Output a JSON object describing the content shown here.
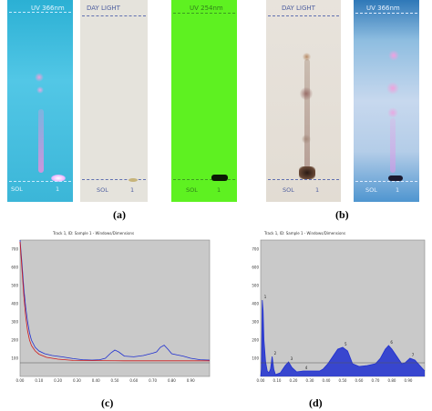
{
  "panel_a": {
    "plates": [
      {
        "top_label": "UV 366nm",
        "sol_label": "SOL",
        "lane_label": "1"
      },
      {
        "top_label": "DAY LIGHT",
        "sol_label": "SOL",
        "lane_label": "1"
      },
      {
        "top_label": "UV 254nm",
        "sol_label": "SOL",
        "lane_label": "1"
      }
    ],
    "caption": "(a)"
  },
  "panel_b": {
    "plates": [
      {
        "top_label": "DAY LIGHT",
        "sol_label": "SOL",
        "lane_label": "1"
      },
      {
        "top_label": "UV 366nm",
        "sol_label": "SOL",
        "lane_label": "1"
      }
    ],
    "caption": "(b)"
  },
  "colors": {
    "uv366": "#3fb8d8",
    "daylight": "#e6e4de",
    "uv254": "#5cf221",
    "chart_bg": "#c9c9c9",
    "blue_trace": "#1f2fd0",
    "red_trace": "#d01a1a"
  },
  "chart_data": [
    {
      "type": "line",
      "header": "Track 1, ID: Sample 1 - Windows/Dimensions",
      "caption": "(c)",
      "xlim": [
        0.0,
        1.0
      ],
      "ylim": [
        0,
        750
      ],
      "x_ticks": [
        "0.00",
        "0.10",
        "0.20",
        "0.30",
        "0.40",
        "0.50",
        "0.60",
        "0.70",
        "0.80",
        "0.90"
      ],
      "y_ticks": [
        "700",
        "600",
        "500",
        "400",
        "300",
        "200",
        "100"
      ],
      "series": [
        {
          "color": "blue",
          "points": [
            [
              0.0,
              750
            ],
            [
              0.01,
              620
            ],
            [
              0.02,
              480
            ],
            [
              0.03,
              380
            ],
            [
              0.04,
              300
            ],
            [
              0.05,
              240
            ],
            [
              0.06,
              200
            ],
            [
              0.08,
              160
            ],
            [
              0.1,
              140
            ],
            [
              0.13,
              125
            ],
            [
              0.17,
              115
            ],
            [
              0.22,
              108
            ],
            [
              0.28,
              98
            ],
            [
              0.33,
              92
            ],
            [
              0.38,
              90
            ],
            [
              0.42,
              92
            ],
            [
              0.45,
              100
            ],
            [
              0.48,
              130
            ],
            [
              0.5,
              145
            ],
            [
              0.52,
              135
            ],
            [
              0.55,
              112
            ],
            [
              0.6,
              108
            ],
            [
              0.65,
              115
            ],
            [
              0.7,
              128
            ],
            [
              0.72,
              135
            ],
            [
              0.74,
              160
            ],
            [
              0.76,
              172
            ],
            [
              0.78,
              150
            ],
            [
              0.8,
              125
            ],
            [
              0.83,
              118
            ],
            [
              0.86,
              112
            ],
            [
              0.9,
              100
            ],
            [
              0.95,
              92
            ],
            [
              1.0,
              90
            ]
          ]
        },
        {
          "color": "red",
          "points": [
            [
              0.0,
              740
            ],
            [
              0.01,
              590
            ],
            [
              0.02,
              440
            ],
            [
              0.03,
              330
            ],
            [
              0.04,
              250
            ],
            [
              0.05,
              200
            ],
            [
              0.06,
              170
            ],
            [
              0.08,
              140
            ],
            [
              0.1,
              122
            ],
            [
              0.14,
              105
            ],
            [
              0.2,
              95
            ],
            [
              0.28,
              88
            ],
            [
              0.4,
              87
            ],
            [
              0.55,
              86
            ],
            [
              0.7,
              86
            ],
            [
              0.85,
              86
            ],
            [
              1.0,
              86
            ]
          ]
        }
      ]
    },
    {
      "type": "area",
      "header": "Track 1, ID: Sample 1 - Windows/Dimensions",
      "caption": "(d)",
      "xlim": [
        0.0,
        1.0
      ],
      "ylim": [
        0,
        750
      ],
      "x_ticks": [
        "0.00",
        "0.10",
        "0.20",
        "0.30",
        "0.40",
        "0.50",
        "0.60",
        "0.70",
        "0.80",
        "0.90"
      ],
      "y_ticks": [
        "700",
        "600",
        "500",
        "400",
        "300",
        "200",
        "100"
      ],
      "peak_labels": [
        "1",
        "2",
        "3",
        "4",
        "5",
        "6",
        "7"
      ],
      "series": [
        {
          "color": "blue",
          "points": [
            [
              0.0,
              0
            ],
            [
              0.005,
              40
            ],
            [
              0.01,
              420
            ],
            [
              0.015,
              360
            ],
            [
              0.02,
              200
            ],
            [
              0.03,
              80
            ],
            [
              0.04,
              30
            ],
            [
              0.05,
              20
            ],
            [
              0.06,
              40
            ],
            [
              0.07,
              110
            ],
            [
              0.08,
              40
            ],
            [
              0.09,
              10
            ],
            [
              0.12,
              20
            ],
            [
              0.15,
              60
            ],
            [
              0.17,
              80
            ],
            [
              0.19,
              50
            ],
            [
              0.22,
              25
            ],
            [
              0.26,
              30
            ],
            [
              0.3,
              30
            ],
            [
              0.36,
              30
            ],
            [
              0.38,
              40
            ],
            [
              0.41,
              70
            ],
            [
              0.44,
              110
            ],
            [
              0.47,
              150
            ],
            [
              0.5,
              160
            ],
            [
              0.53,
              140
            ],
            [
              0.56,
              70
            ],
            [
              0.6,
              55
            ],
            [
              0.65,
              60
            ],
            [
              0.7,
              70
            ],
            [
              0.73,
              100
            ],
            [
              0.76,
              150
            ],
            [
              0.78,
              170
            ],
            [
              0.8,
              150
            ],
            [
              0.83,
              110
            ],
            [
              0.86,
              70
            ],
            [
              0.88,
              75
            ],
            [
              0.91,
              100
            ],
            [
              0.94,
              90
            ],
            [
              0.97,
              60
            ],
            [
              1.0,
              30
            ]
          ]
        }
      ]
    }
  ]
}
